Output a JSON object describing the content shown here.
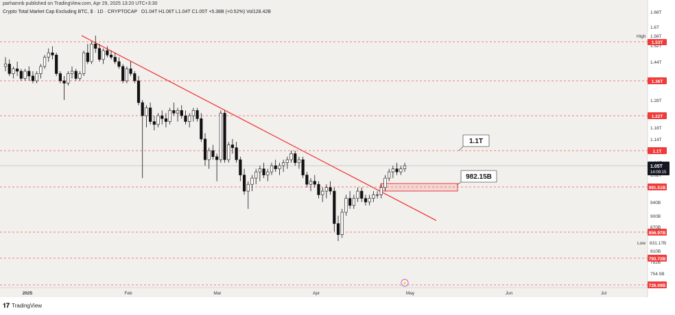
{
  "header": {
    "publisher": "parhamnb published on TradingView.com, Apr 29, 2025 13:20 UTC+3:30",
    "symbol": "Crypto Total Market Cap Excluding BTC, $ · 1D · CRYPTOCAP",
    "ohlc": "O1.04T  H1.06T  L1.04T  C1.05T  +5.38B (+0.52%)  Vol128.42B"
  },
  "footer": {
    "brand": "TradingView",
    "logo_icon": "tradingview-logo-icon"
  },
  "colors": {
    "background": "#f2f0ed",
    "candle": "#111111",
    "trendline": "#f03a3a",
    "level": "#ef5350",
    "badge_red": "#ef3b3b",
    "badge_dark": "#131722"
  },
  "chart_data": {
    "type": "candlestick",
    "x_axis_ticks": [
      "2025",
      "Feb",
      "Mar",
      "Apr",
      "May",
      "Jun",
      "Jul"
    ],
    "y_axis_ticks": [
      "1.68T",
      "1.6T",
      "1.52T",
      "1.44T",
      "1.36T",
      "1.28T",
      "1.18T",
      "1.14T",
      "1.1T",
      "1.06T",
      "1.02T",
      "940B",
      "900B",
      "870B",
      "810B",
      "782B",
      "754.5B"
    ],
    "current_price": {
      "label": "1.05T",
      "countdown": "14:09:15"
    },
    "levels": [
      {
        "label": "1.53T",
        "value": 1.53
      },
      {
        "label": "1.36T",
        "value": 1.36
      },
      {
        "label": "1.22T",
        "value": 1.22
      },
      {
        "label": "1.1T",
        "value": 1.1
      },
      {
        "label": "981.51B",
        "value": 0.98151
      },
      {
        "label": "856.97B",
        "value": 0.85697
      },
      {
        "label": "793.72B",
        "value": 0.79372
      },
      {
        "label": "726.09B",
        "value": 0.72609
      }
    ],
    "high": {
      "label": "High",
      "value": "1.56T"
    },
    "low": {
      "label": "Low",
      "value": "831.17B"
    },
    "annotations": [
      {
        "text": "1.1T"
      },
      {
        "text": "982.15B"
      }
    ],
    "trendline": {
      "start": {
        "date": "2025-01-18",
        "value": 1.56
      },
      "end": {
        "date": "2025-05-23",
        "value": 0.88
      }
    },
    "zone": {
      "from": "2025-04-21",
      "to": "2025-05-23",
      "low": 0.955,
      "high": 0.99
    },
    "candles": [
      [
        1.42,
        1.46,
        1.4,
        1.43
      ],
      [
        1.43,
        1.45,
        1.38,
        1.39
      ],
      [
        1.39,
        1.42,
        1.37,
        1.41
      ],
      [
        1.41,
        1.44,
        1.38,
        1.4
      ],
      [
        1.4,
        1.41,
        1.36,
        1.37
      ],
      [
        1.37,
        1.41,
        1.36,
        1.4
      ],
      [
        1.4,
        1.42,
        1.36,
        1.38
      ],
      [
        1.38,
        1.4,
        1.35,
        1.36
      ],
      [
        1.36,
        1.4,
        1.35,
        1.39
      ],
      [
        1.39,
        1.43,
        1.37,
        1.42
      ],
      [
        1.42,
        1.47,
        1.41,
        1.46
      ],
      [
        1.46,
        1.5,
        1.44,
        1.48
      ],
      [
        1.48,
        1.51,
        1.45,
        1.47
      ],
      [
        1.47,
        1.48,
        1.38,
        1.39
      ],
      [
        1.39,
        1.4,
        1.35,
        1.36
      ],
      [
        1.36,
        1.38,
        1.28,
        1.35
      ],
      [
        1.35,
        1.4,
        1.34,
        1.39
      ],
      [
        1.39,
        1.42,
        1.37,
        1.4
      ],
      [
        1.4,
        1.41,
        1.36,
        1.37
      ],
      [
        1.37,
        1.4,
        1.36,
        1.39
      ],
      [
        1.39,
        1.49,
        1.38,
        1.48
      ],
      [
        1.48,
        1.52,
        1.43,
        1.44
      ],
      [
        1.44,
        1.53,
        1.43,
        1.52
      ],
      [
        1.52,
        1.56,
        1.48,
        1.5
      ],
      [
        1.5,
        1.52,
        1.44,
        1.45
      ],
      [
        1.45,
        1.5,
        1.43,
        1.49
      ],
      [
        1.49,
        1.51,
        1.46,
        1.47
      ],
      [
        1.47,
        1.49,
        1.45,
        1.46
      ],
      [
        1.46,
        1.48,
        1.43,
        1.44
      ],
      [
        1.44,
        1.46,
        1.41,
        1.42
      ],
      [
        1.42,
        1.43,
        1.35,
        1.36
      ],
      [
        1.36,
        1.42,
        1.35,
        1.41
      ],
      [
        1.41,
        1.44,
        1.38,
        1.39
      ],
      [
        1.39,
        1.4,
        1.35,
        1.36
      ],
      [
        1.36,
        1.38,
        1.26,
        1.27
      ],
      [
        1.27,
        1.28,
        1.01,
        1.22
      ],
      [
        1.22,
        1.26,
        1.18,
        1.25
      ],
      [
        1.25,
        1.27,
        1.19,
        1.2
      ],
      [
        1.2,
        1.22,
        1.17,
        1.19
      ],
      [
        1.19,
        1.23,
        1.18,
        1.22
      ],
      [
        1.22,
        1.24,
        1.19,
        1.21
      ],
      [
        1.21,
        1.23,
        1.18,
        1.2
      ],
      [
        1.2,
        1.25,
        1.19,
        1.24
      ],
      [
        1.24,
        1.27,
        1.22,
        1.23
      ],
      [
        1.23,
        1.25,
        1.2,
        1.24
      ],
      [
        1.24,
        1.26,
        1.21,
        1.22
      ],
      [
        1.22,
        1.24,
        1.19,
        1.2
      ],
      [
        1.2,
        1.23,
        1.18,
        1.22
      ],
      [
        1.22,
        1.25,
        1.2,
        1.24
      ],
      [
        1.24,
        1.25,
        1.2,
        1.21
      ],
      [
        1.21,
        1.23,
        1.13,
        1.14
      ],
      [
        1.14,
        1.16,
        1.05,
        1.07
      ],
      [
        1.07,
        1.11,
        1.04,
        1.1
      ],
      [
        1.1,
        1.12,
        1.07,
        1.08
      ],
      [
        1.08,
        1.09,
        1.0,
        1.07
      ],
      [
        1.07,
        1.24,
        1.06,
        1.23
      ],
      [
        1.23,
        1.24,
        1.06,
        1.07
      ],
      [
        1.07,
        1.13,
        1.06,
        1.12
      ],
      [
        1.12,
        1.14,
        1.09,
        1.11
      ],
      [
        1.11,
        1.13,
        1.06,
        1.07
      ],
      [
        1.07,
        1.08,
        1.0,
        1.02
      ],
      [
        1.02,
        1.04,
        0.96,
        0.97
      ],
      [
        0.97,
        1.0,
        0.92,
        0.99
      ],
      [
        0.99,
        1.02,
        0.97,
        1.01
      ],
      [
        1.01,
        1.04,
        0.99,
        1.03
      ],
      [
        1.03,
        1.05,
        1.0,
        1.04
      ],
      [
        1.04,
        1.06,
        1.01,
        1.02
      ],
      [
        1.02,
        1.04,
        1.0,
        1.03
      ],
      [
        1.03,
        1.06,
        1.02,
        1.05
      ],
      [
        1.05,
        1.07,
        1.03,
        1.04
      ],
      [
        1.04,
        1.06,
        1.02,
        1.05
      ],
      [
        1.05,
        1.07,
        1.03,
        1.06
      ],
      [
        1.06,
        1.08,
        1.04,
        1.07
      ],
      [
        1.07,
        1.1,
        1.06,
        1.09
      ],
      [
        1.09,
        1.1,
        1.05,
        1.06
      ],
      [
        1.06,
        1.08,
        1.04,
        1.07
      ],
      [
        1.07,
        1.08,
        1.01,
        1.02
      ],
      [
        1.02,
        1.03,
        0.98,
        0.99
      ],
      [
        0.99,
        1.01,
        0.97,
        1.0
      ],
      [
        1.0,
        1.02,
        0.98,
        0.99
      ],
      [
        0.99,
        1.0,
        0.95,
        0.96
      ],
      [
        0.96,
        0.98,
        0.94,
        0.97
      ],
      [
        0.97,
        0.99,
        0.95,
        0.98
      ],
      [
        0.98,
        1.0,
        0.96,
        0.97
      ],
      [
        0.97,
        0.98,
        0.86,
        0.88
      ],
      [
        0.88,
        0.9,
        0.83,
        0.85
      ],
      [
        0.85,
        0.92,
        0.84,
        0.91
      ],
      [
        0.91,
        0.96,
        0.9,
        0.95
      ],
      [
        0.95,
        0.97,
        0.92,
        0.93
      ],
      [
        0.93,
        0.96,
        0.92,
        0.95
      ],
      [
        0.95,
        0.98,
        0.94,
        0.97
      ],
      [
        0.97,
        0.98,
        0.94,
        0.95
      ],
      [
        0.95,
        0.96,
        0.93,
        0.94
      ],
      [
        0.94,
        0.96,
        0.93,
        0.95
      ],
      [
        0.95,
        0.97,
        0.94,
        0.96
      ],
      [
        0.96,
        0.97,
        0.95,
        0.96
      ],
      [
        0.96,
        0.99,
        0.95,
        0.98
      ],
      [
        0.98,
        1.02,
        0.97,
        1.01
      ],
      [
        1.01,
        1.04,
        1.0,
        1.03
      ],
      [
        1.03,
        1.05,
        1.01,
        1.04
      ],
      [
        1.04,
        1.06,
        1.02,
        1.03
      ],
      [
        1.03,
        1.05,
        1.02,
        1.04
      ],
      [
        1.04,
        1.06,
        1.03,
        1.05
      ]
    ]
  }
}
